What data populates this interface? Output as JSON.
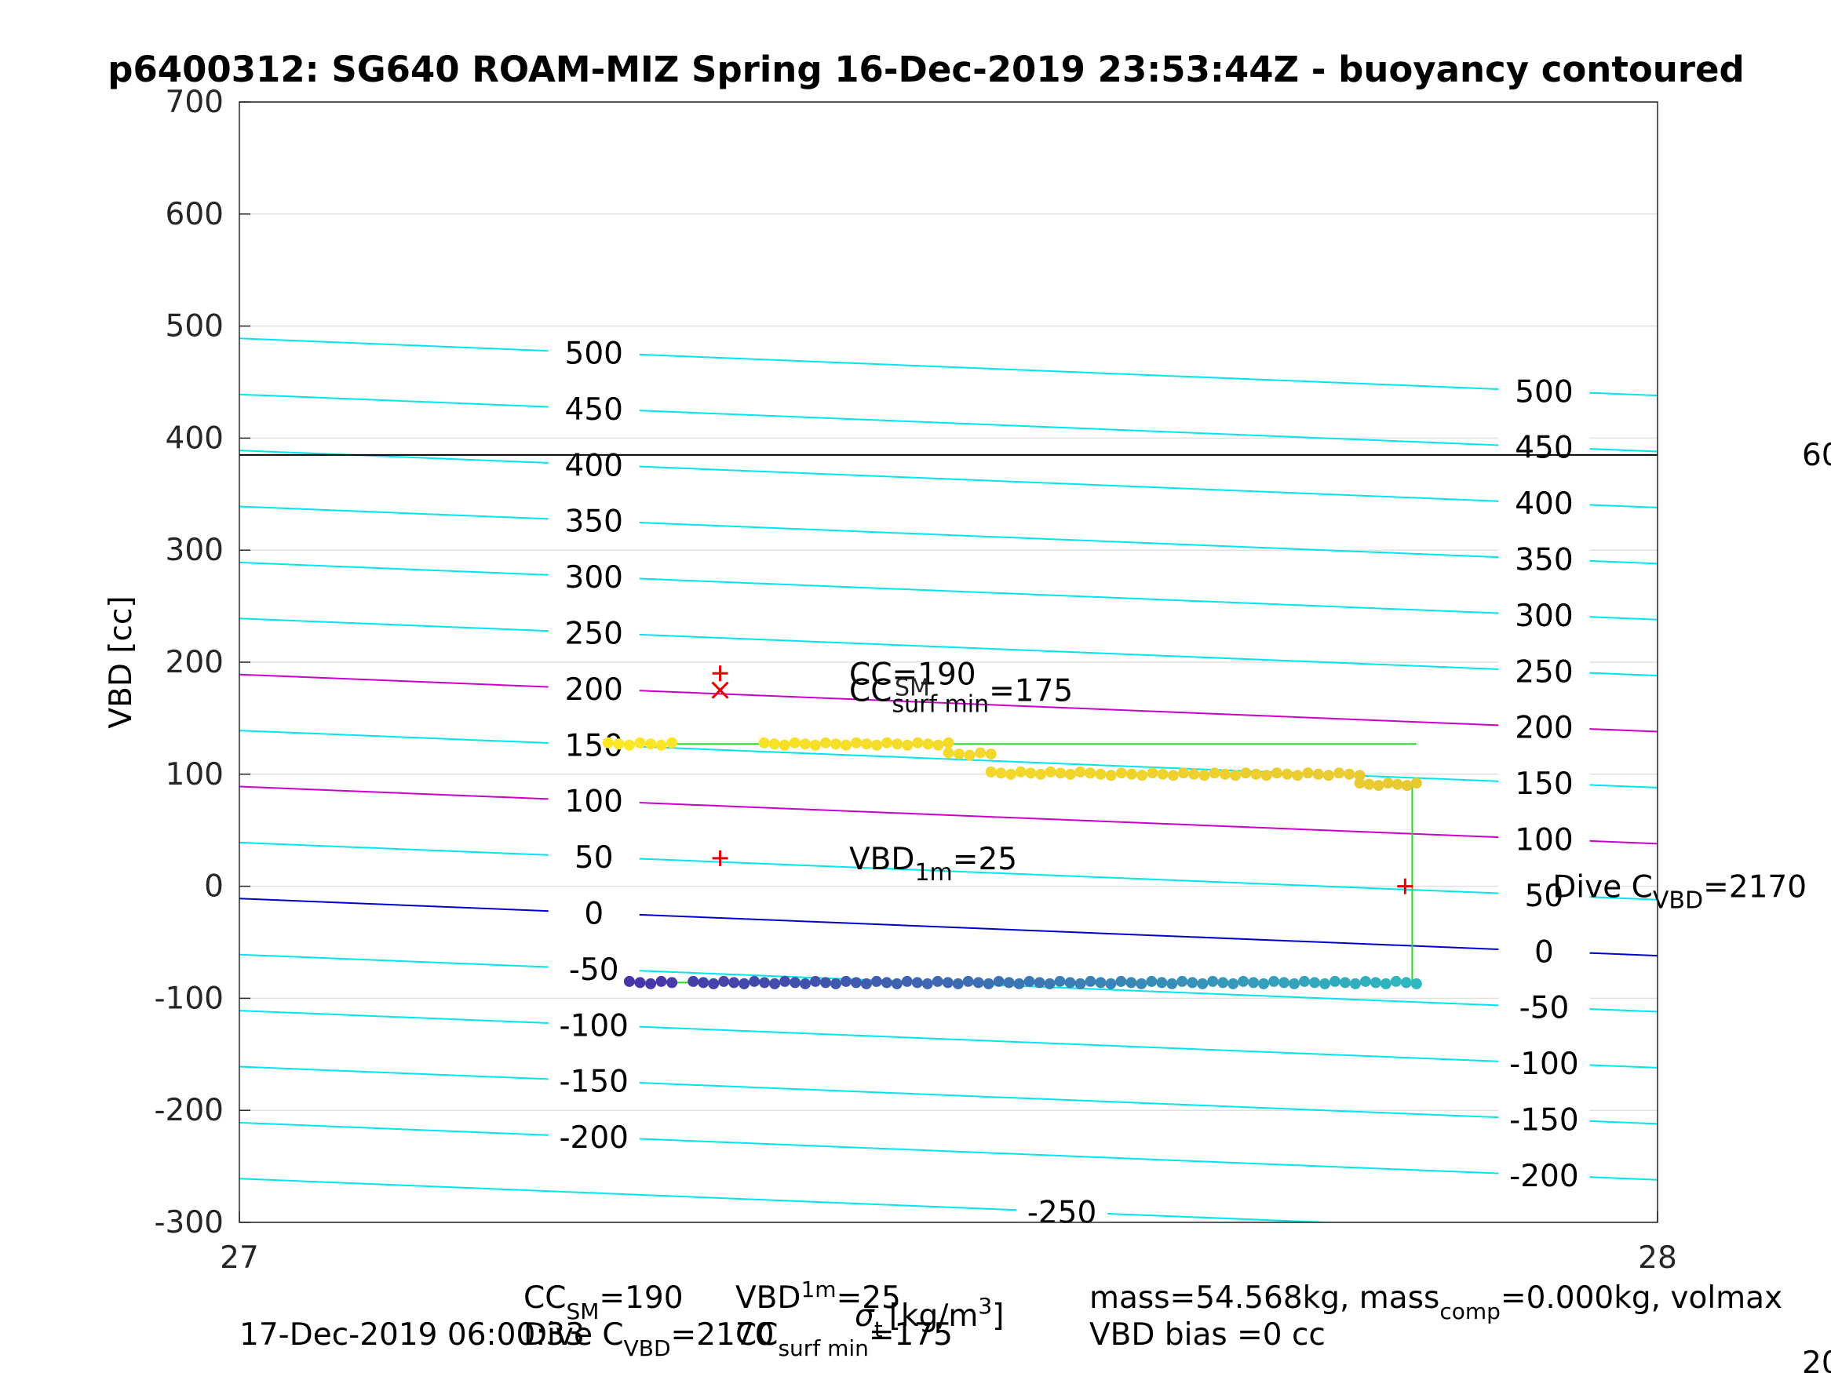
{
  "chart_data": {
    "type": "scatter",
    "title": "p6400312: SG640 ROAM-MIZ Spring 16-Dec-2019 23:53:44Z - buoyancy contoured",
    "xlabel": "σ",
    "xlabel_sub": "t",
    "xlabel_unit": "[kg/m",
    "xlabel_unit_sup": "3",
    "xlabel_unit_close": "]",
    "ylabel": "VBD [cc]",
    "xlim": [
      27,
      28
    ],
    "ylim": [
      -300,
      700
    ],
    "x_ticks": [
      "27",
      "28"
    ],
    "y_ticks": [
      "-300",
      "-200",
      "-100",
      "0",
      "100",
      "200",
      "300",
      "400",
      "500",
      "600",
      "700"
    ],
    "grid": "on",
    "contour_offsets": [
      -250,
      -200,
      -150,
      -100,
      -50,
      0,
      50,
      100,
      150,
      200,
      250,
      300,
      350,
      400,
      450,
      500
    ],
    "contour_slope": -51,
    "contour_intercept": -11,
    "contour_labels_left": {
      "x": 27.25,
      "values": [
        "500",
        "450",
        "400",
        "350",
        "300",
        "250",
        "200",
        "150",
        "100",
        "50",
        "0",
        "-50",
        "-100",
        "-150",
        "-200"
      ]
    },
    "contour_labels_right": {
      "x": 27.92,
      "values": [
        "500",
        "450",
        "400",
        "350",
        "300",
        "250",
        "200",
        "150",
        "100",
        "50",
        "0",
        "-50",
        "-100",
        "-150",
        "-200"
      ]
    },
    "contour_label_bottom": {
      "x": 27.58,
      "value": "-250"
    },
    "highlight_contours": [
      {
        "offset": 0,
        "color": "#0000cc"
      },
      {
        "offset": 100,
        "color": "#cc00cc"
      },
      {
        "offset": 200,
        "color": "#cc00cc"
      }
    ],
    "contour_color": "#00e5ee",
    "hline": {
      "y": 385,
      "color": "#000000"
    },
    "hline_label": "60",
    "markers": [
      {
        "x": 27.339,
        "y": 190,
        "symbol": "+",
        "color": "#e60000"
      },
      {
        "x": 27.339,
        "y": 175,
        "symbol": "x",
        "color": "#e60000"
      },
      {
        "x": 27.339,
        "y": 25,
        "symbol": "+",
        "color": "#e60000"
      },
      {
        "x": 27.822,
        "y": 0,
        "symbol": "+",
        "color": "#e60000"
      }
    ],
    "annotations": [
      {
        "x": 27.43,
        "y": 190,
        "base": "CC",
        "sub": "",
        "rest": "=190"
      },
      {
        "x": 27.43,
        "y": 175,
        "base": "CC",
        "sub": "surf min",
        "rest": "=175"
      },
      {
        "x": 27.43,
        "y": 25,
        "base": "VBD",
        "sub": "1m",
        "rest": "=25"
      },
      {
        "x": 27.926,
        "y": 0,
        "base": "Dive C",
        "sub": "VBD",
        "rest": "=2170"
      }
    ],
    "annotation_overlap_sm": {
      "base": "",
      "sub": "SM"
    },
    "series": [
      {
        "name": "",
        "segments": [
          {
            "x": [
              27.26,
              27.305
            ],
            "y": [
              127,
              127
            ]
          },
          {
            "x": [
              27.37,
              27.5
            ],
            "y": [
              127,
              127
            ]
          },
          {
            "x": [
              27.5,
              27.53
            ],
            "y": [
              118,
              118
            ]
          },
          {
            "x": [
              27.53,
              27.6
            ],
            "y": [
              101,
              101
            ]
          },
          {
            "x": [
              27.6,
              27.79
            ],
            "y": [
              100,
              100
            ]
          },
          {
            "x": [
              27.79,
              27.83
            ],
            "y": [
              91,
              91
            ]
          }
        ],
        "connector": [
          [
            27.26,
            127
          ],
          [
            27.83,
            127
          ]
        ],
        "color_start": "#fde725",
        "color_end": "#e8c832"
      },
      {
        "name": "",
        "segments": [
          {
            "x": [
              27.275,
              27.305
            ],
            "y": [
              -86,
              -86
            ]
          },
          {
            "x": [
              27.32,
              27.83
            ],
            "y": [
              -86,
              -86
            ]
          }
        ],
        "color_start": "#4734a8",
        "color_end": "#30b8c0"
      }
    ],
    "descent_line": {
      "x": 27.827,
      "y": [
        91,
        -86
      ],
      "color": "#22dd22"
    },
    "bottom_line": {
      "x": [
        27.275,
        27.83
      ],
      "y": -86,
      "color": "#22dd22"
    }
  },
  "footer": {
    "line1_left": "CC",
    "line1_left_sub": "SM",
    "line1_left_rest": "=190",
    "line1_vbd": "VBD",
    "line1_vbd_sub": "1m",
    "line1_vbd_rest": "=25",
    "line2_date": "17-Dec-2019 06:00:33",
    "line2_dive": "Dive C",
    "line2_dive_sub": "VBD",
    "line2_dive_rest": "=2170",
    "line2_cc": "CC",
    "line2_cc_sub": "surf min",
    "line2_cc_rest": "=175",
    "right_line1": "mass=54.568kg, mass",
    "right_line1_sub": "comp",
    "right_line1_rest": "=0.000kg, volmax",
    "right_line2": "VBD bias =0 cc",
    "edge_fragment": "20"
  },
  "colors": {
    "contour": "#00e5ee",
    "zero_contour": "#0000cc",
    "magenta_contour": "#cc00cc",
    "marker": "#e60000",
    "connector": "#22dd22"
  }
}
